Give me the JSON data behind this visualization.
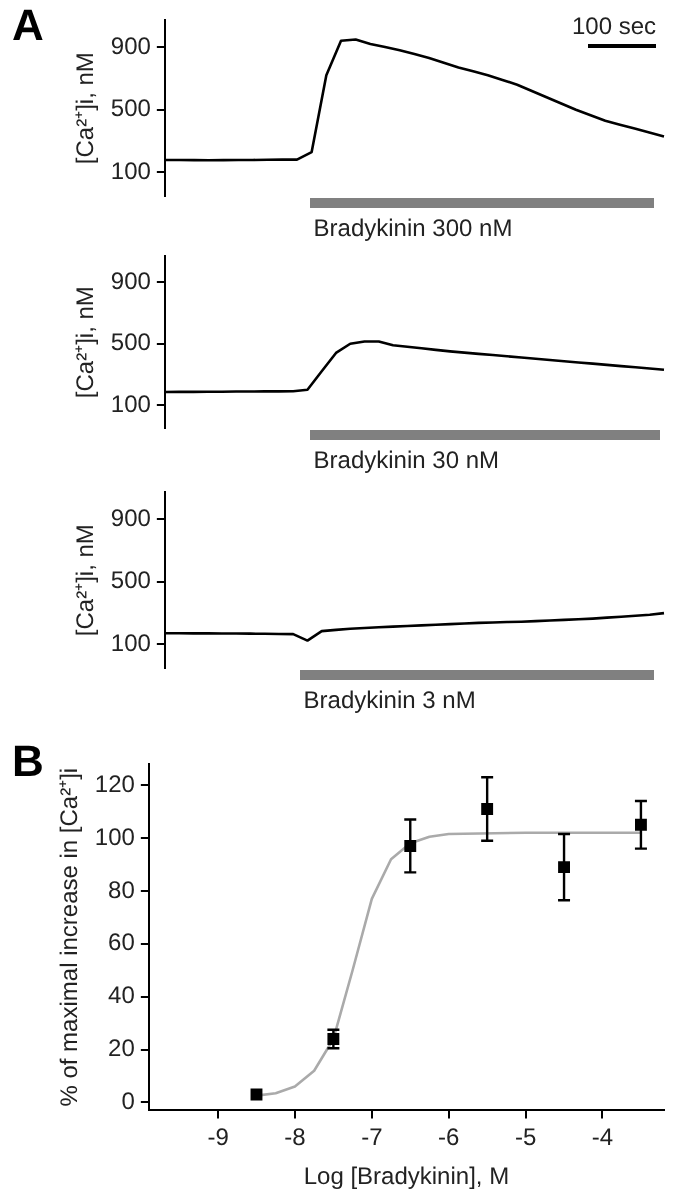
{
  "chart_data": [
    {
      "type": "line",
      "title": "A",
      "ylabel": "[Ca²⁺]i, nM",
      "annotations": [
        "100 sec",
        "Bradykinin 300 nM"
      ],
      "tick_labels": "y",
      "grid": false,
      "legend": false,
      "ylim": [
        -50,
        1070
      ],
      "yticks": [
        100,
        500,
        900
      ],
      "categories": [
        null,
        null,
        null,
        null,
        null,
        null,
        null,
        null,
        null,
        null,
        null,
        null,
        null,
        null,
        null,
        null,
        null,
        null,
        null,
        null,
        null,
        null,
        null,
        null,
        null,
        null,
        null,
        null,
        null,
        null,
        null,
        null,
        null,
        null,
        null
      ],
      "series": [
        {
          "color": "#000000",
          "values": [
            180,
            180,
            179,
            178,
            179,
            180,
            180,
            181,
            182,
            182,
            230,
            720,
            940,
            948,
            920,
            900,
            880,
            855,
            830,
            800,
            770,
            745,
            720,
            690,
            660,
            620,
            580,
            540,
            500,
            465,
            430,
            405,
            380,
            355,
            330
          ]
        }
      ]
    },
    {
      "type": "line",
      "ylabel": "[Ca²⁺]i, nM",
      "annotations": [
        "Bradykinin 30 nM"
      ],
      "tick_labels": "y",
      "grid": false,
      "legend": false,
      "ylim": [
        -50,
        1070
      ],
      "yticks": [
        100,
        500,
        900
      ],
      "categories": [
        null,
        null,
        null,
        null,
        null,
        null,
        null,
        null,
        null,
        null,
        null,
        null,
        null,
        null,
        null,
        null,
        null,
        null,
        null,
        null,
        null,
        null,
        null,
        null,
        null,
        null,
        null,
        null,
        null,
        null,
        null,
        null,
        null,
        null,
        null,
        null
      ],
      "series": [
        {
          "color": "#000000",
          "values": [
            185,
            186,
            186,
            187,
            187,
            188,
            188,
            189,
            189,
            190,
            200,
            320,
            440,
            500,
            515,
            515,
            490,
            480,
            470,
            460,
            450,
            442,
            434,
            426,
            418,
            410,
            402,
            394,
            386,
            378,
            370,
            362,
            354,
            346,
            338,
            330
          ]
        }
      ]
    },
    {
      "type": "line",
      "ylabel": "[Ca²⁺]i, nM",
      "annotations": [
        "Bradykinin 3 nM"
      ],
      "tick_labels": "y",
      "grid": false,
      "legend": false,
      "ylim": [
        -50,
        1070
      ],
      "yticks": [
        100,
        500,
        900
      ],
      "categories": [
        null,
        null,
        null,
        null,
        null,
        null,
        null,
        null,
        null,
        null,
        null,
        null,
        null,
        null,
        null,
        null,
        null,
        null,
        null,
        null,
        null,
        null,
        null,
        null,
        null,
        null,
        null,
        null,
        null,
        null,
        null,
        null,
        null,
        null,
        null,
        null
      ],
      "series": [
        {
          "color": "#000000",
          "values": [
            172,
            172,
            171,
            171,
            170,
            170,
            169,
            168,
            167,
            166,
            125,
            185,
            193,
            200,
            205,
            210,
            214,
            218,
            222,
            226,
            230,
            234,
            238,
            240,
            243,
            245,
            249,
            253,
            257,
            261,
            265,
            271,
            277,
            283,
            290,
            300
          ]
        }
      ]
    },
    {
      "type": "scatter",
      "title": "B",
      "xlabel": "Log [Bradykinin], M",
      "ylabel": "% of maximal increase in [Ca²⁺]i",
      "grid": false,
      "legend": false,
      "xlim": [
        -9.9,
        -3.2
      ],
      "xticks": [
        -9,
        -8,
        -7,
        -6,
        -5,
        -4
      ],
      "ylim": [
        -3,
        128
      ],
      "yticks": [
        0,
        20,
        40,
        60,
        80,
        100,
        120
      ],
      "series": [
        {
          "type": "scatter",
          "color": "#000000",
          "marker": "square",
          "x": [
            -8.5,
            -7.5,
            -6.5,
            -5.5,
            -4.5,
            -3.5
          ],
          "values": [
            3,
            24,
            97,
            111,
            89,
            105
          ],
          "errors": [
            null,
            3.5,
            10,
            12,
            12.5,
            9
          ]
        },
        {
          "type": "line",
          "color": "#aaaaaa",
          "marker": "none",
          "x": [
            -8.5,
            -8.25,
            -8,
            -7.75,
            -7.5,
            -7.25,
            -7,
            -6.75,
            -6.5,
            -6.25,
            -6,
            -5,
            -4,
            -3.5
          ],
          "values": [
            2.6,
            3.5,
            6,
            12,
            24,
            50,
            77,
            92,
            98,
            100.5,
            101.5,
            102,
            102,
            102
          ]
        }
      ]
    }
  ]
}
